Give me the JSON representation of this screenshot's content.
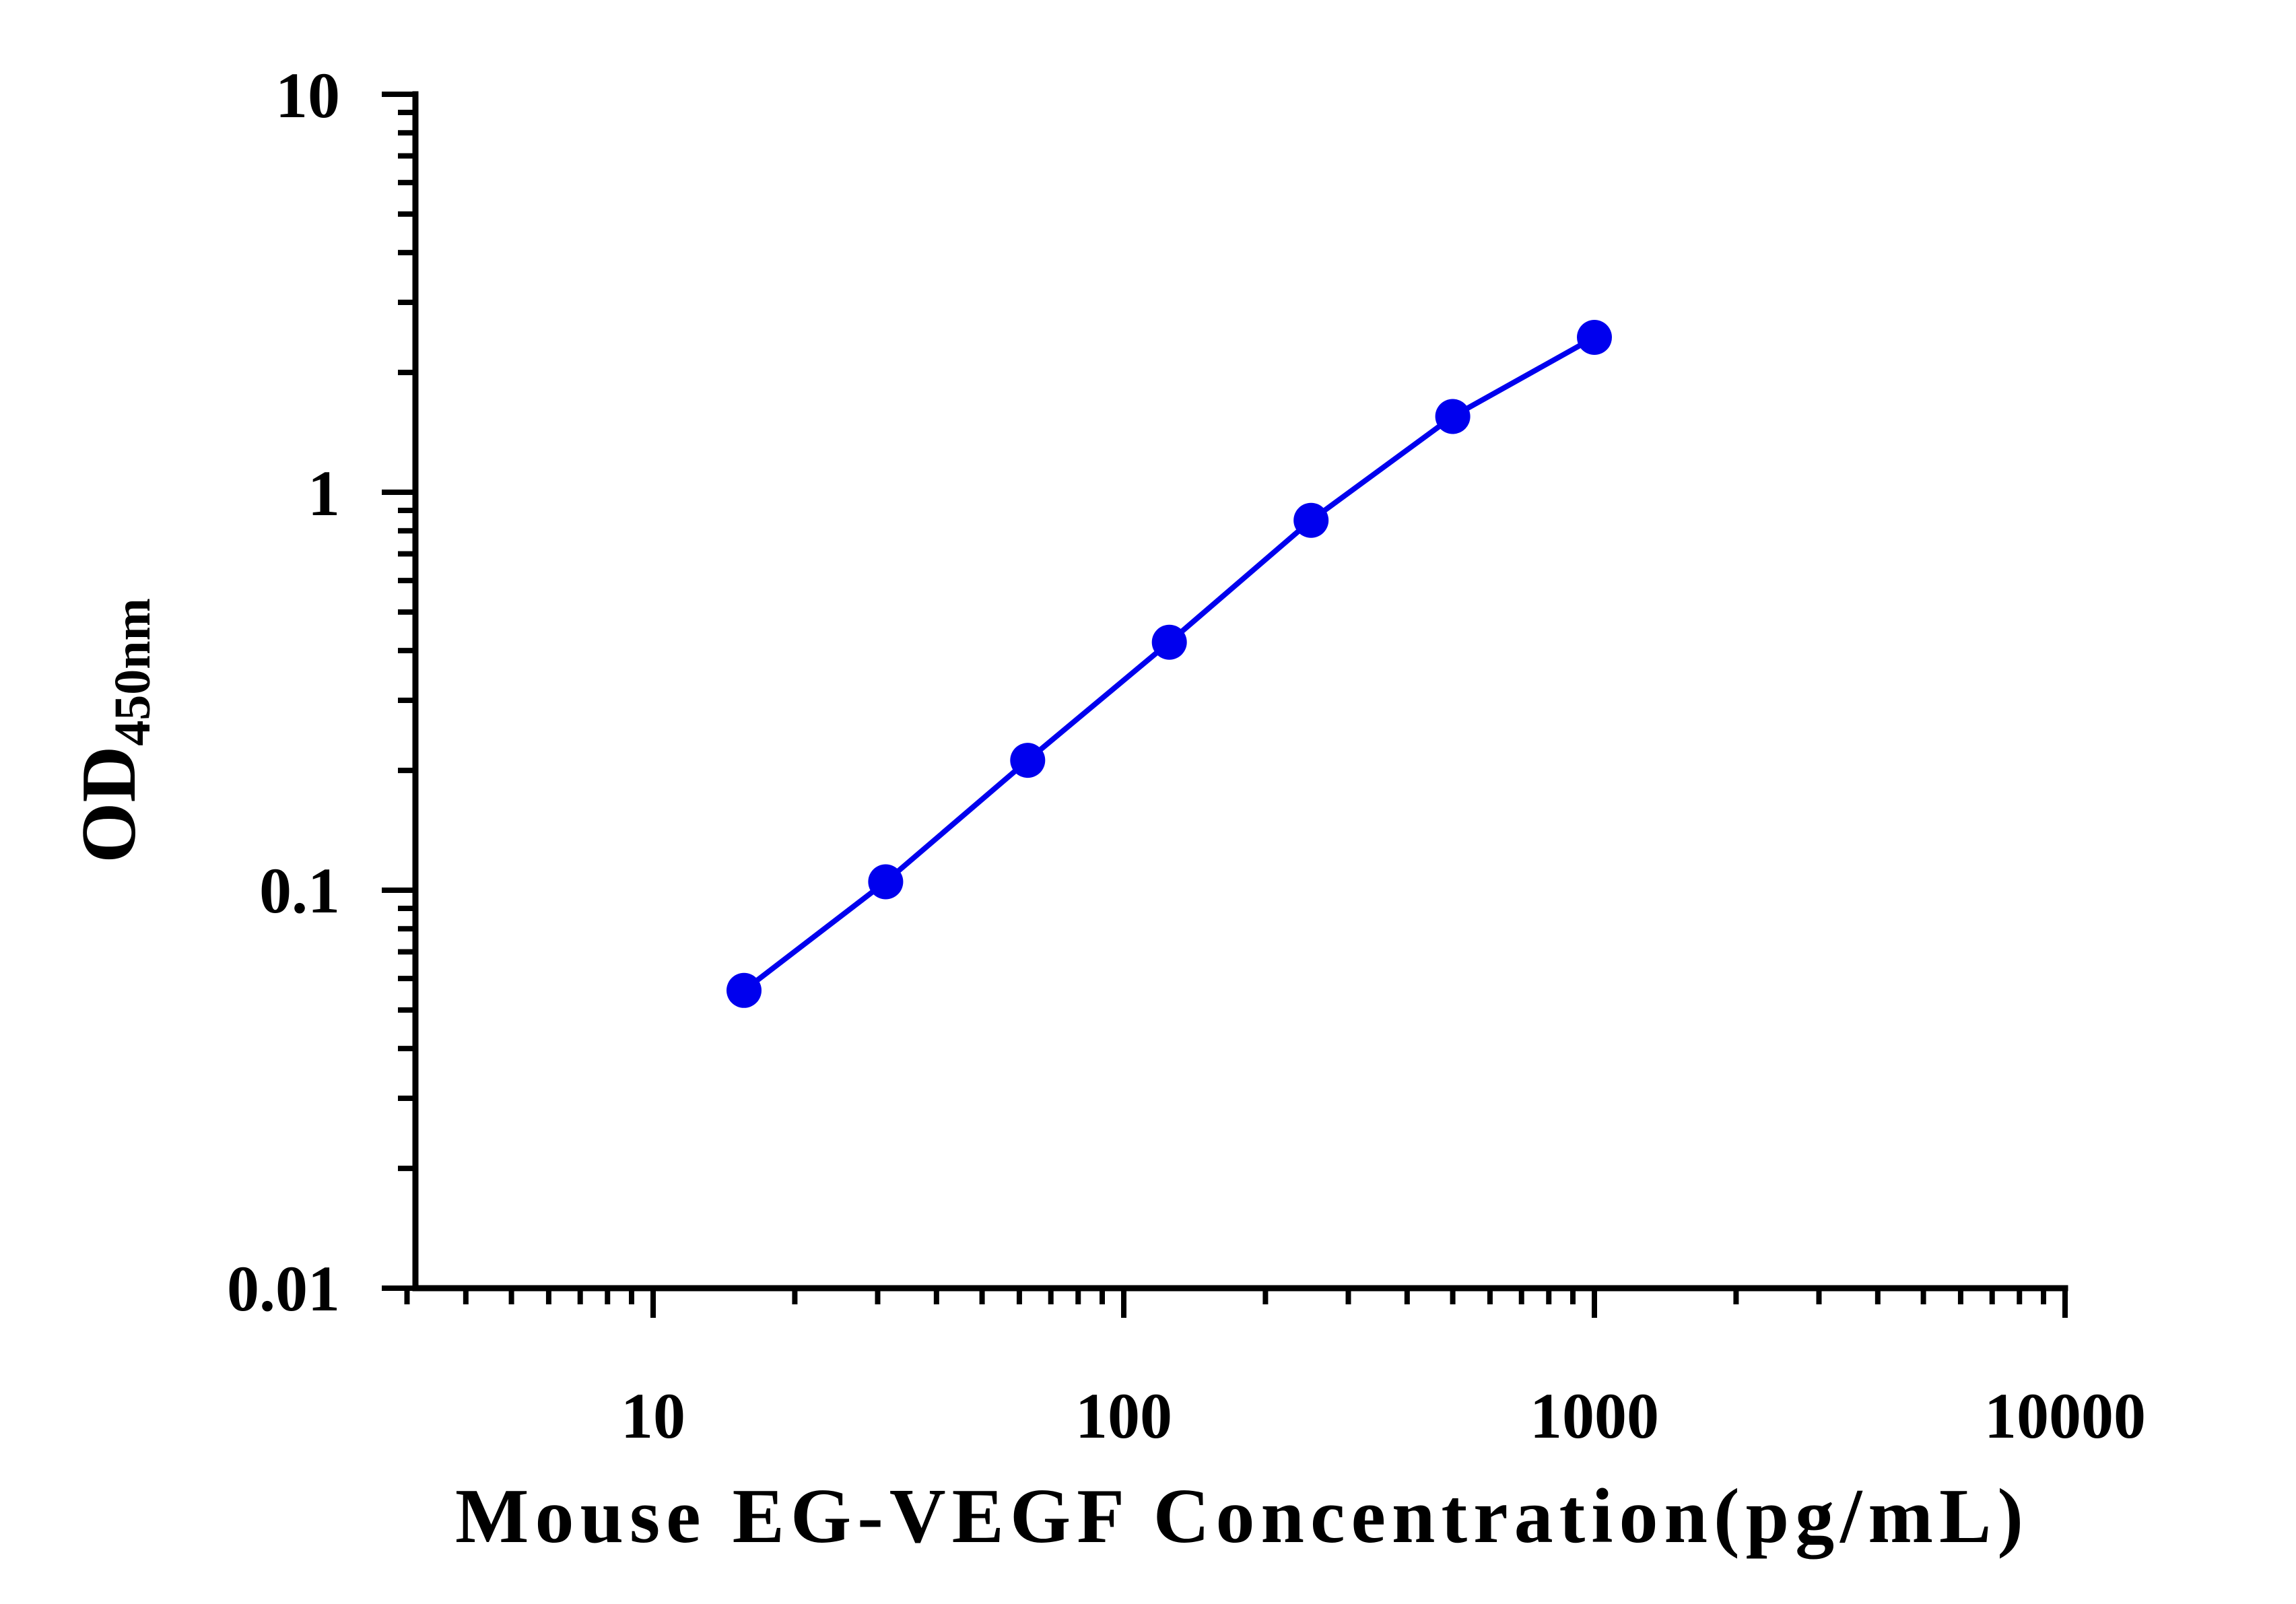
{
  "chart_data": {
    "type": "line",
    "x_scale": "log",
    "y_scale": "log",
    "xlim": [
      3,
      10000
    ],
    "ylim": [
      0.01,
      10
    ],
    "x_ticks": [
      "10",
      "100",
      "1000",
      "10000"
    ],
    "y_ticks": [
      "0.01",
      "0.1",
      "1",
      "10"
    ],
    "xlabel": "Mouse EG-VEGF Concentration(pg/mL)",
    "ylabel_main": "OD",
    "ylabel_sub": "450nm",
    "grid": false,
    "series": [
      {
        "color": "#0000ee",
        "x": [
          15.6,
          31.2,
          62.5,
          125,
          250,
          500,
          1000
        ],
        "y": [
          0.056,
          0.105,
          0.212,
          0.42,
          0.85,
          1.55,
          2.45
        ]
      }
    ]
  }
}
